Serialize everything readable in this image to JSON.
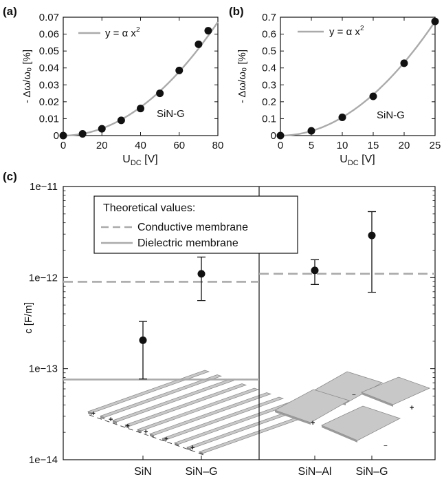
{
  "panels": {
    "a": {
      "label": "(a)"
    },
    "b": {
      "label": "(b)"
    },
    "c": {
      "label": "(c)"
    }
  },
  "chart_data": [
    {
      "id": "a",
      "type": "scatter",
      "ylabel": "- Δω/ω₀ [%]",
      "xlabel": "U_DC [V]",
      "xlabel_main": "U",
      "xlabel_sub": "DC",
      "xlabel_unit": " [V]",
      "xlim": [
        0,
        80
      ],
      "ylim": [
        0,
        0.07
      ],
      "xticks": [
        0,
        20,
        40,
        60,
        80
      ],
      "yticks": [
        0,
        0.01,
        0.02,
        0.03,
        0.04,
        0.05,
        0.06,
        0.07
      ],
      "legend": "y = α x²",
      "legend_main": "y = α x",
      "legend_sup": "2",
      "annotation": "SiN-G",
      "fit_coefficient": 1.05e-05,
      "x": [
        0,
        10,
        20,
        30,
        40,
        50,
        60,
        70,
        75
      ],
      "y": [
        0,
        0.001,
        0.004,
        0.009,
        0.016,
        0.025,
        0.0385,
        0.054,
        0.062
      ],
      "colors": {
        "fit": "#aaaaaa",
        "points": "#111111"
      }
    },
    {
      "id": "b",
      "type": "scatter",
      "ylabel": "- Δω/ω₀ [%]",
      "xlabel": "U_DC [V]",
      "xlabel_main": "U",
      "xlabel_sub": "DC",
      "xlabel_unit": " [V]",
      "xlim": [
        0,
        25
      ],
      "ylim": [
        0,
        0.7
      ],
      "xticks": [
        0,
        5,
        10,
        15,
        20,
        25
      ],
      "yticks": [
        0,
        0.1,
        0.2,
        0.3,
        0.4,
        0.5,
        0.6,
        0.7
      ],
      "legend": "y = α x²",
      "legend_main": "y = α x",
      "legend_sup": "2",
      "annotation": "SiN-G",
      "fit_coefficient": 0.00108,
      "x": [
        0,
        5,
        10,
        15,
        20,
        25
      ],
      "y": [
        0,
        0.028,
        0.108,
        0.232,
        0.428,
        0.675
      ],
      "colors": {
        "fit": "#aaaaaa",
        "points": "#111111"
      }
    },
    {
      "id": "c",
      "type": "scatter",
      "scale": "log",
      "ylabel": "c [F/m]",
      "ylim": [
        1e-14,
        1e-11
      ],
      "yticks": [
        "1e−11",
        "1e−12",
        "1e−13",
        "1e−14"
      ],
      "ytick_values": [
        1e-11,
        1e-12,
        1e-13,
        1e-14
      ],
      "categories": [
        "SiN",
        "SiN–G",
        "SiN–Al",
        "SiN–G"
      ],
      "values": [
        2.05e-13,
        1.1e-12,
        1.2e-12,
        2.9e-12
      ],
      "error_low": [
        7.7e-14,
        5.6e-13,
        8.4e-13,
        6.9e-13
      ],
      "error_high": [
        3.3e-13,
        1.68e-12,
        1.57e-12,
        5.3e-12
      ],
      "legend": {
        "title": "Theoretical values:",
        "items": [
          {
            "label": "Conductive membrane",
            "style": "dashed"
          },
          {
            "label": "Dielectric membrane",
            "style": "solid"
          }
        ]
      },
      "theory_left": {
        "conductive": 9e-13,
        "dielectric": 7.6e-14
      },
      "theory_right": {
        "conductive": 1.1e-12
      },
      "colors": {
        "theory": "#aaaaaa",
        "points": "#111111",
        "membrane": "#c8c8c8",
        "membrane_edge": "#8a8a8a"
      }
    }
  ]
}
